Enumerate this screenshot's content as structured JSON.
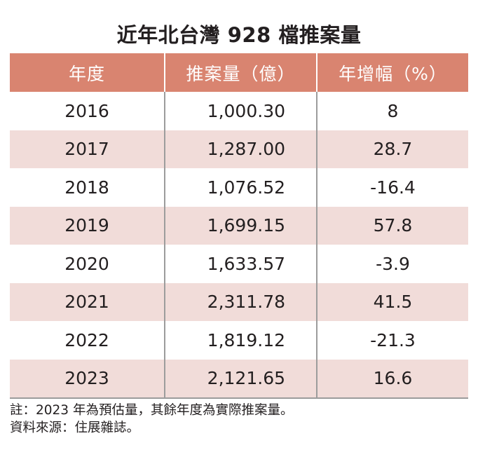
{
  "title": "近年北台灣 928 檔推案量",
  "colors": {
    "header_bg": "#d98470",
    "row_alt_bg": "#f1dcd9",
    "row_bg": "#ffffff",
    "header_text": "#ffffff"
  },
  "table": {
    "headers": [
      "年度",
      "推案量（億）",
      "年增幅（%）"
    ],
    "rows": [
      {
        "year": "2016",
        "volume": "1,000.30",
        "growth": "8"
      },
      {
        "year": "2017",
        "volume": "1,287.00",
        "growth": "28.7"
      },
      {
        "year": "2018",
        "volume": "1,076.52",
        "growth": "-16.4"
      },
      {
        "year": "2019",
        "volume": "1,699.15",
        "growth": "57.8"
      },
      {
        "year": "2020",
        "volume": "1,633.57",
        "growth": "-3.9"
      },
      {
        "year": "2021",
        "volume": "2,311.78",
        "growth": "41.5"
      },
      {
        "year": "2022",
        "volume": "1,819.12",
        "growth": "-21.3"
      },
      {
        "year": "2023",
        "volume": "2,121.65",
        "growth": "16.6"
      }
    ]
  },
  "notes": {
    "note": "註：2023 年為預估量，其餘年度為實際推案量。",
    "source": "資料來源：住展雜誌。"
  }
}
